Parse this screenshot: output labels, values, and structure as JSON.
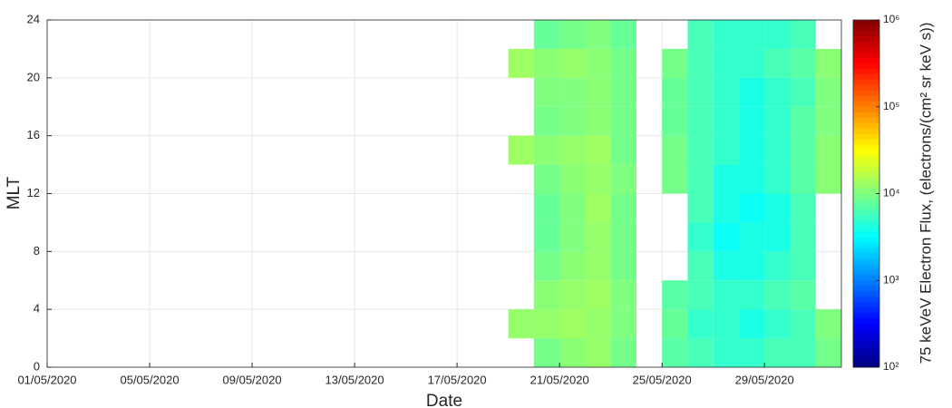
{
  "chart_data": {
    "type": "heatmap",
    "xlabel": "Date",
    "ylabel": "MLT",
    "colorbar_label": "75 keVeV Electron Flux, (electrons/(cm² sr keV s))",
    "colormap": "jet",
    "log_color": true,
    "grid": true,
    "x": [
      "19/05/2020",
      "20/05/2020",
      "21/05/2020",
      "22/05/2020",
      "23/05/2020",
      "24/05/2020",
      "25/05/2020",
      "26/05/2020",
      "27/05/2020",
      "28/05/2020",
      "29/05/2020",
      "30/05/2020",
      "31/05/2020"
    ],
    "xlim": [
      "01/05/2020",
      "01/06/2020"
    ],
    "xticks": [
      "01/05/2020",
      "05/05/2020",
      "09/05/2020",
      "13/05/2020",
      "17/05/2020",
      "21/05/2020",
      "25/05/2020",
      "29/05/2020"
    ],
    "ylim": [
      0,
      24
    ],
    "yticks": [
      0,
      4,
      8,
      12,
      16,
      20,
      24
    ],
    "clim": [
      100,
      1000000
    ],
    "cticks": [
      {
        "value": 100,
        "label": "10²"
      },
      {
        "value": 1000,
        "label": "10³"
      },
      {
        "value": 10000,
        "label": "10⁴"
      },
      {
        "value": 100000,
        "label": "10⁵"
      },
      {
        "value": 1000000,
        "label": "10⁶"
      }
    ],
    "z": [
      [
        null,
        9000,
        11000,
        12000,
        9000,
        null,
        7000,
        6000,
        5000,
        5000,
        6000,
        6000,
        9000
      ],
      [
        12000,
        12000,
        13000,
        12000,
        10000,
        null,
        8000,
        5000,
        5000,
        4000,
        5000,
        6000,
        10000
      ],
      [
        null,
        11000,
        12000,
        13000,
        10000,
        null,
        7000,
        6000,
        5000,
        5000,
        6000,
        7000,
        null
      ],
      [
        null,
        9000,
        11000,
        12000,
        9000,
        null,
        null,
        6000,
        4000,
        4000,
        5000,
        6000,
        null
      ],
      [
        null,
        8000,
        10000,
        12000,
        9000,
        null,
        null,
        5000,
        3500,
        4000,
        4000,
        6000,
        null
      ],
      [
        null,
        8000,
        10000,
        13000,
        9000,
        null,
        null,
        6000,
        4000,
        3500,
        4000,
        6000,
        null
      ],
      [
        null,
        9000,
        11000,
        12000,
        10000,
        null,
        9000,
        6000,
        4000,
        4000,
        5000,
        7000,
        11000
      ],
      [
        13000,
        11000,
        12000,
        13000,
        9000,
        null,
        9000,
        6000,
        5000,
        4000,
        5000,
        7000,
        11000
      ],
      [
        null,
        9000,
        10000,
        11000,
        9000,
        null,
        8000,
        6000,
        5000,
        4000,
        5000,
        7000,
        10000
      ],
      [
        null,
        10000,
        10000,
        11000,
        9000,
        null,
        8000,
        6000,
        5000,
        4000,
        5000,
        6000,
        10000
      ],
      [
        13000,
        11000,
        12000,
        11000,
        9000,
        null,
        9000,
        6000,
        5000,
        5000,
        6000,
        7000,
        11000
      ],
      [
        null,
        8000,
        9000,
        10000,
        8000,
        null,
        null,
        6000,
        5000,
        5000,
        5000,
        6000,
        null
      ]
    ]
  }
}
